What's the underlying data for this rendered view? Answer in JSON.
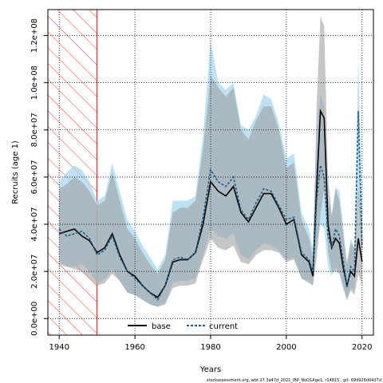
{
  "chart_data": {
    "type": "line",
    "xlabel": "Years",
    "ylabel": "Recruits (age 1)",
    "xlim": [
      1937,
      2023
    ],
    "ylim": [
      -7000000,
      131000000
    ],
    "x_ticks": [
      {
        "value": 1940,
        "label": "1940"
      },
      {
        "value": 1960,
        "label": "1960"
      },
      {
        "value": 1980,
        "label": "1980"
      },
      {
        "value": 2000,
        "label": "2000"
      },
      {
        "value": 2020,
        "label": "2020"
      }
    ],
    "y_ticks": [
      {
        "value": 0,
        "label": "0.0e+00"
      },
      {
        "value": 20000000,
        "label": "2.0e+07"
      },
      {
        "value": 40000000,
        "label": "4.0e+07"
      },
      {
        "value": 60000000,
        "label": "6.0e+07"
      },
      {
        "value": 80000000,
        "label": "8.0e+07"
      },
      {
        "value": 100000000,
        "label": "1.0e+08"
      },
      {
        "value": 120000000,
        "label": "1.2e+08"
      }
    ],
    "grid": true,
    "hatched_region": {
      "x_start": 1937,
      "x_end": 1950,
      "color": "#ff0000"
    },
    "x": [
      1940,
      1942,
      1944,
      1946,
      1948,
      1950,
      1952,
      1954,
      1956,
      1958,
      1960,
      1962,
      1964,
      1966,
      1968,
      1970,
      1972,
      1974,
      1976,
      1978,
      1980,
      1982,
      1984,
      1986,
      1988,
      1990,
      1992,
      1994,
      1996,
      1998,
      2000,
      2002,
      2004,
      2006,
      2007,
      2008,
      2009,
      2010,
      2011,
      2012,
      2013,
      2014,
      2015,
      2016,
      2017,
      2018,
      2019,
      2020
    ],
    "series": [
      {
        "name": "base",
        "color": "#000000",
        "band_color": "#a0a0a0",
        "line_style": "solid",
        "values": [
          36,
          37,
          38,
          35,
          33,
          28,
          30,
          36,
          27,
          20,
          18,
          14,
          11,
          9,
          14,
          24,
          25,
          25,
          28,
          40,
          58,
          54,
          52,
          56,
          45,
          41,
          47,
          53,
          53,
          47,
          40,
          42,
          27,
          24,
          18,
          55,
          88,
          85,
          40,
          30,
          34,
          32,
          22,
          14,
          20,
          18,
          34,
          24
        ],
        "lower": [
          23,
          22,
          21,
          20,
          17,
          14,
          15,
          19,
          16,
          11,
          10,
          8,
          6,
          5,
          6,
          13,
          14,
          14,
          15,
          25,
          34,
          30,
          29,
          31,
          24,
          23,
          27,
          29,
          29,
          28,
          24,
          25,
          17,
          15,
          14,
          25,
          44,
          55,
          28,
          20,
          20,
          19,
          13,
          8,
          12,
          10,
          19,
          14
        ],
        "upper": [
          55,
          57,
          60,
          58,
          54,
          48,
          50,
          62,
          50,
          38,
          34,
          28,
          23,
          19,
          25,
          45,
          47,
          47,
          50,
          72,
          103,
          98,
          94,
          98,
          80,
          76,
          84,
          90,
          90,
          80,
          64,
          66,
          42,
          34,
          26,
          90,
          128,
          124,
          60,
          44,
          55,
          50,
          36,
          24,
          32,
          30,
          56,
          40
        ]
      },
      {
        "name": "current",
        "color": "#1a5f8a",
        "band_color": "#a6d8ef",
        "line_style": "dashed",
        "values": [
          38,
          35,
          36,
          37,
          34,
          27,
          29,
          35,
          26,
          20,
          17,
          14,
          11,
          8,
          14,
          25,
          26,
          25,
          28,
          43,
          63,
          58,
          56,
          60,
          46,
          42,
          49,
          55,
          54,
          48,
          42,
          43,
          28,
          25,
          20,
          50,
          65,
          60,
          35,
          30,
          38,
          35,
          25,
          13,
          22,
          20,
          88,
          30
        ],
        "lower": [
          24,
          22,
          22,
          23,
          20,
          15,
          17,
          21,
          16,
          11,
          10,
          8,
          6,
          5,
          7,
          15,
          16,
          16,
          17,
          27,
          38,
          35,
          34,
          36,
          27,
          25,
          29,
          32,
          31,
          29,
          25,
          26,
          17,
          16,
          14,
          30,
          40,
          38,
          22,
          18,
          22,
          20,
          14,
          8,
          13,
          12,
          55,
          18
        ],
        "upper": [
          58,
          62,
          65,
          63,
          58,
          50,
          52,
          66,
          54,
          42,
          37,
          31,
          26,
          21,
          27,
          50,
          50,
          50,
          52,
          78,
          118,
          100,
          97,
          100,
          82,
          80,
          86,
          95,
          93,
          83,
          68,
          70,
          45,
          38,
          30,
          78,
          95,
          90,
          50,
          44,
          56,
          54,
          40,
          22,
          34,
          30,
          110,
          48
        ]
      }
    ],
    "units_multiplier": 1000000,
    "legend": {
      "placement": "bottom-center"
    },
    "footer": "stockassessment.org, wbt.27.3a47d_2021_IBP_NoQ1Age1, r14815 , git: 69d926d0437d"
  }
}
